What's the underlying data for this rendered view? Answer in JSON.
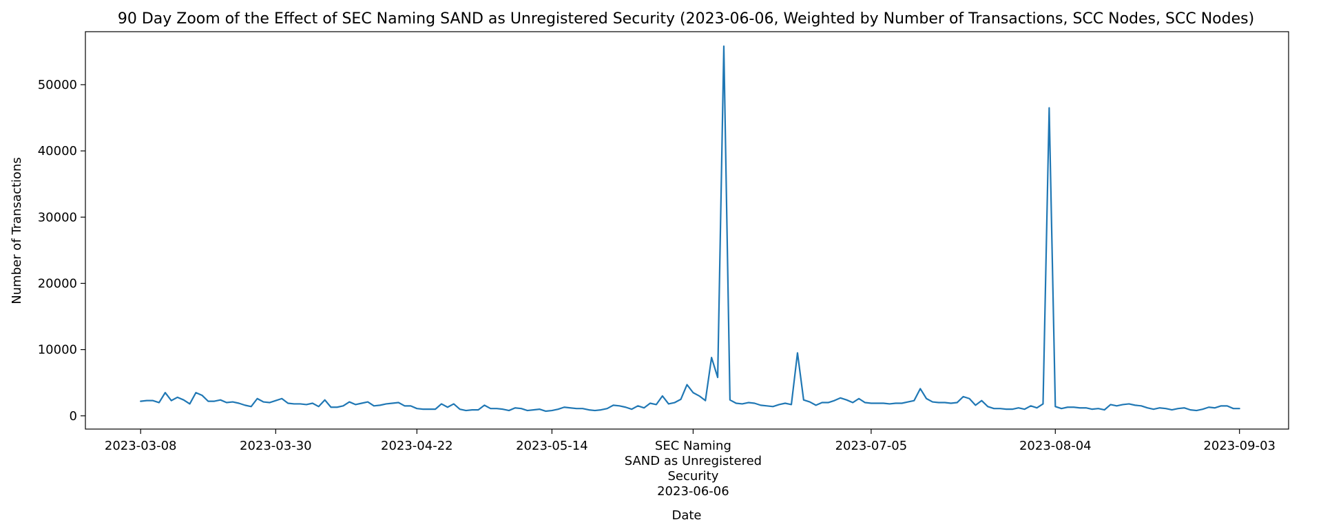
{
  "chart_data": {
    "type": "line",
    "title": "90 Day Zoom of the Effect of SEC Naming SAND as Unregistered Security (2023-06-06, Weighted by Number of Transactions, SCC Nodes, SCC Nodes)",
    "xlabel": "Date",
    "ylabel": "Number of Transactions",
    "x_start": "2023-03-08",
    "x_end": "2023-09-03",
    "xlim": [
      "2023-02-27",
      "2023-09-11"
    ],
    "ylim": [
      -2000,
      58000
    ],
    "grid": false,
    "line_color": "#1f77b4",
    "x_ticks": [
      {
        "date": "2023-03-08",
        "label": "2023-03-08"
      },
      {
        "date": "2023-03-30",
        "label": "2023-03-30"
      },
      {
        "date": "2023-04-22",
        "label": "2023-04-22"
      },
      {
        "date": "2023-05-14",
        "label": "2023-05-14"
      },
      {
        "date": "2023-06-06",
        "label": "SEC Naming\nSAND as Unregistered\nSecurity\n2023-06-06"
      },
      {
        "date": "2023-07-05",
        "label": "2023-07-05"
      },
      {
        "date": "2023-08-04",
        "label": "2023-08-04"
      },
      {
        "date": "2023-09-03",
        "label": "2023-09-03"
      }
    ],
    "y_ticks": [
      0,
      10000,
      20000,
      30000,
      40000,
      50000
    ],
    "series": [
      {
        "values": [
          2200,
          2300,
          2300,
          2000,
          3500,
          2300,
          2800,
          2400,
          1800,
          3500,
          3100,
          2200,
          2200,
          2400,
          2000,
          2100,
          1900,
          1600,
          1400,
          2600,
          2100,
          2000,
          2300,
          2600,
          1900,
          1800,
          1800,
          1700,
          1900,
          1400,
          2400,
          1300,
          1300,
          1500,
          2100,
          1700,
          1900,
          2100,
          1500,
          1600,
          1800,
          1900,
          2000,
          1500,
          1500,
          1100,
          1000,
          1000,
          1000,
          1800,
          1300,
          1800,
          1000,
          800,
          900,
          900,
          1600,
          1100,
          1100,
          1000,
          800,
          1200,
          1100,
          800,
          900,
          1000,
          700,
          800,
          1000,
          1300,
          1200,
          1100,
          1100,
          900,
          800,
          900,
          1100,
          1600,
          1500,
          1300,
          1000,
          1500,
          1200,
          1900,
          1700,
          3000,
          1800,
          2000,
          2500,
          4700,
          3500,
          3000,
          2300,
          8800,
          5800,
          55800,
          2400,
          1900,
          1800,
          2000,
          1900,
          1600,
          1500,
          1400,
          1700,
          1900,
          1700,
          9500,
          2400,
          2100,
          1600,
          2000,
          2000,
          2300,
          2700,
          2400,
          2000,
          2600,
          2000,
          1900,
          1900,
          1900,
          1800,
          1900,
          1900,
          2100,
          2300,
          4100,
          2600,
          2100,
          2000,
          2000,
          1900,
          2000,
          2900,
          2600,
          1600,
          2300,
          1400,
          1100,
          1100,
          1000,
          1000,
          1200,
          1000,
          1500,
          1200,
          1800,
          46500,
          1400,
          1100,
          1300,
          1300,
          1200,
          1200,
          1000,
          1100,
          900,
          1700,
          1500,
          1700,
          1800,
          1600,
          1500,
          1200,
          1000,
          1200,
          1100,
          900,
          1100,
          1200,
          900,
          800,
          1000,
          1300,
          1200,
          1500,
          1500,
          1100,
          1100
        ]
      }
    ]
  }
}
